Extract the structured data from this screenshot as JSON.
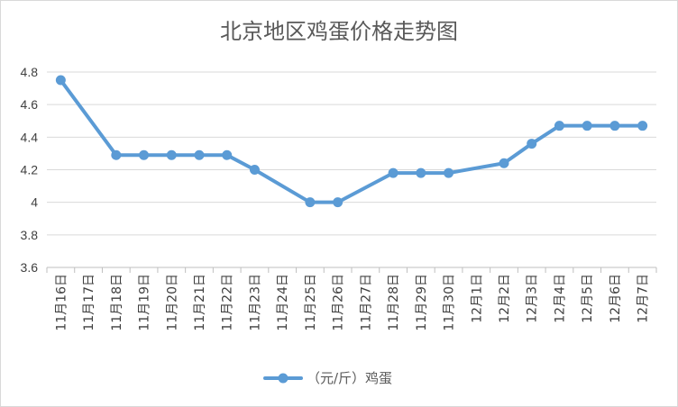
{
  "chart_data": {
    "type": "line",
    "title": "北京地区鸡蛋价格走势图",
    "categories": [
      "11月16日",
      "11月17日",
      "11月18日",
      "11月19日",
      "11月20日",
      "11月21日",
      "11月22日",
      "11月23日",
      "11月24日",
      "11月25日",
      "11月26日",
      "11月27日",
      "11月28日",
      "11月29日",
      "11月30日",
      "12月1日",
      "12月2日",
      "12月3日",
      "12月4日",
      "12月5日",
      "12月6日",
      "12月7日"
    ],
    "series": [
      {
        "name": "（元/斤）鸡蛋",
        "color": "#5b9bd5",
        "values": [
          4.75,
          null,
          4.29,
          4.29,
          4.29,
          4.29,
          4.29,
          4.2,
          null,
          4.0,
          4.0,
          null,
          4.18,
          4.18,
          4.18,
          null,
          4.24,
          4.36,
          4.47,
          4.47,
          4.47,
          4.47
        ]
      }
    ],
    "ylim": [
      3.6,
      4.8
    ],
    "yticks": [
      3.6,
      3.8,
      4,
      4.2,
      4.4,
      4.6,
      4.8
    ],
    "ytick_labels": [
      "3.6",
      "3.8",
      "4",
      "4.2",
      "4.4",
      "4.6",
      "4.8"
    ],
    "grid": true,
    "legend_position": "bottom",
    "xlabel": "",
    "ylabel": ""
  }
}
